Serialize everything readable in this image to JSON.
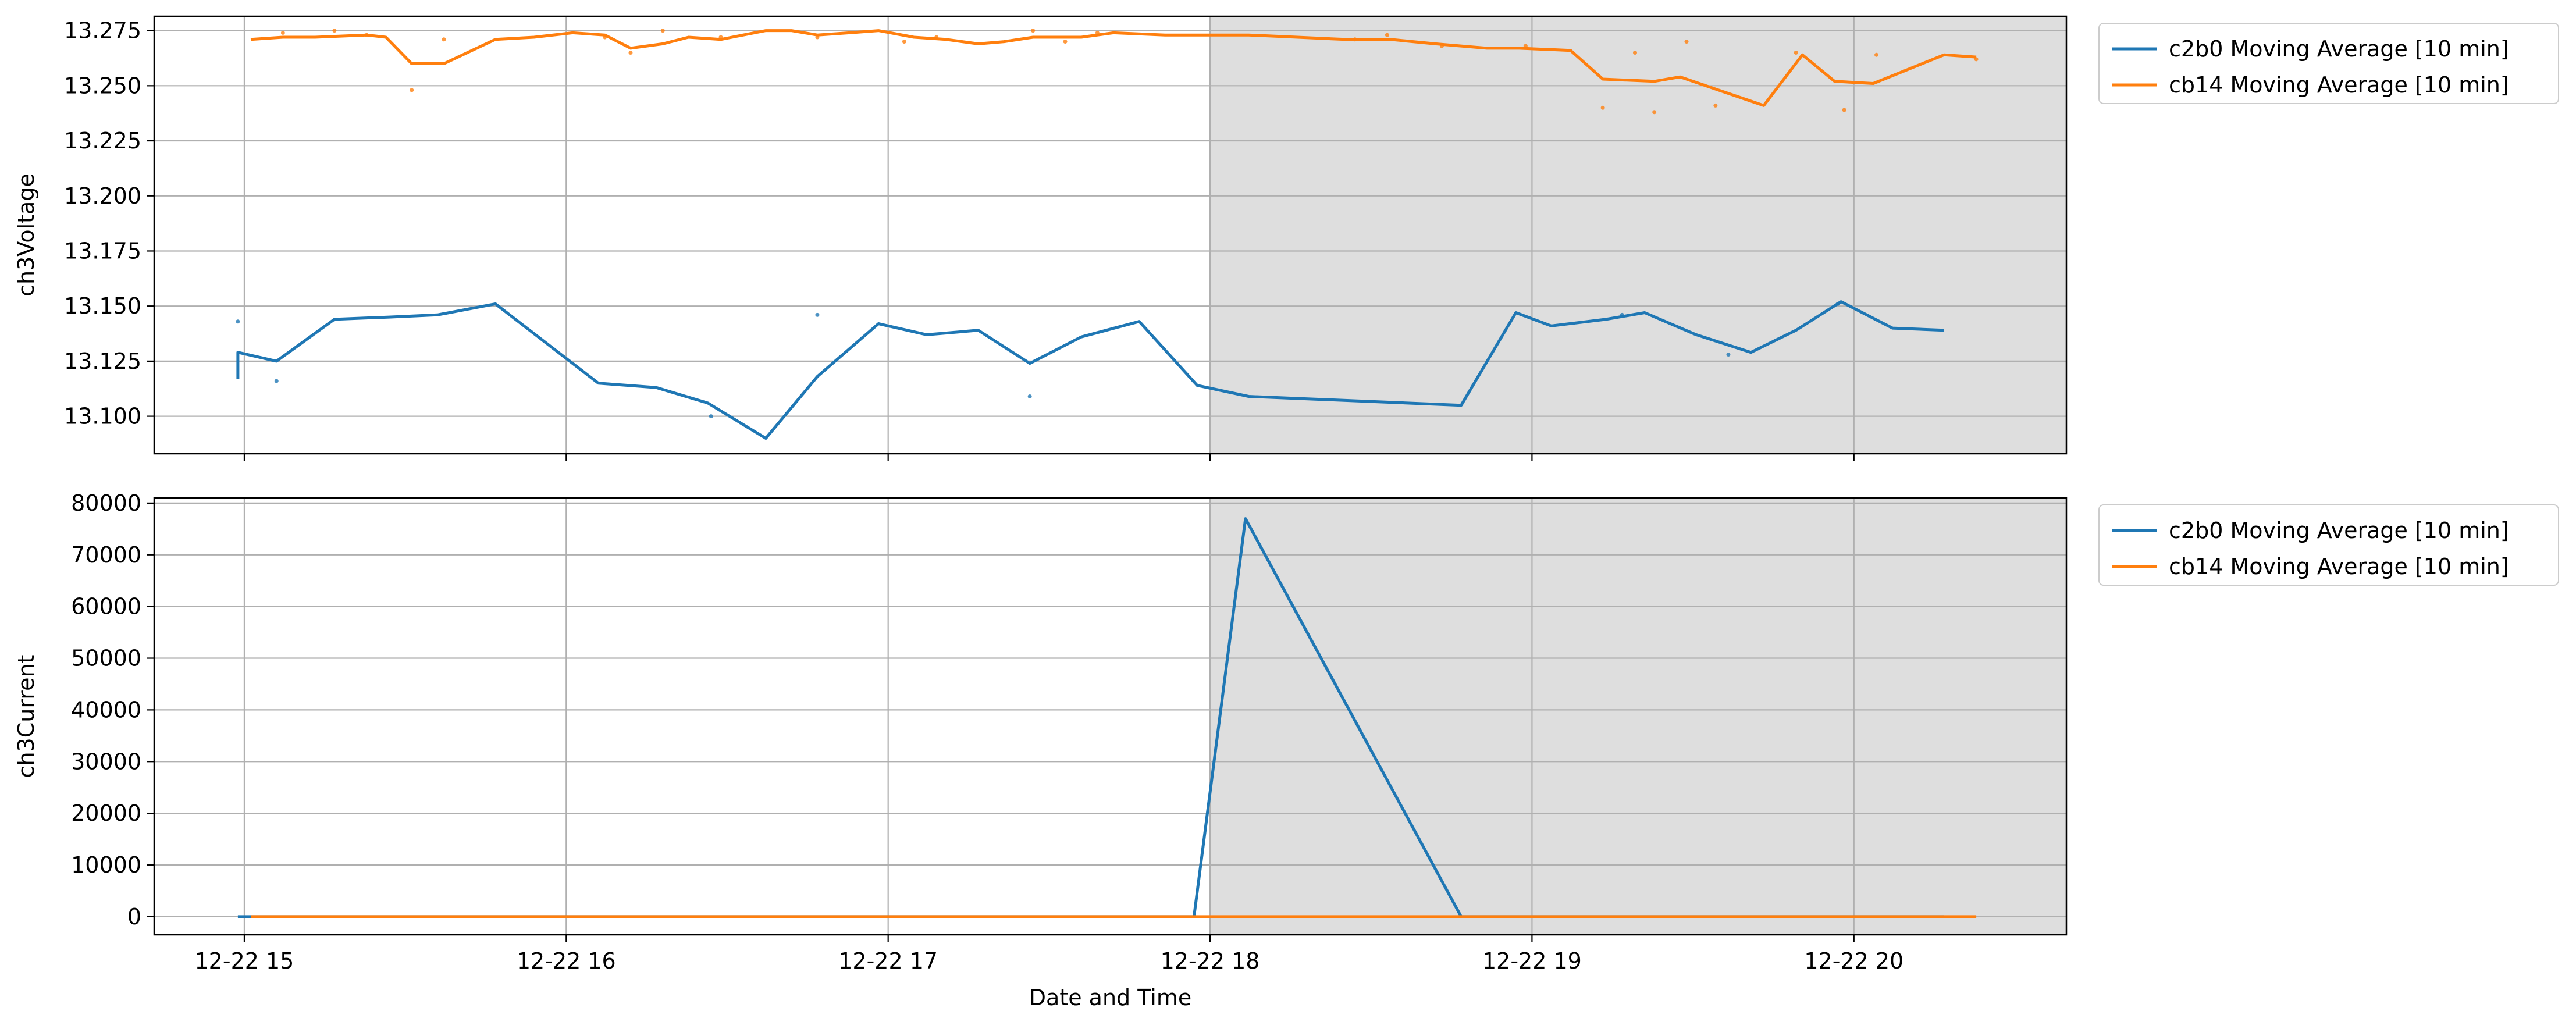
{
  "chart_data": [
    {
      "type": "line",
      "ylabel": "ch3Voltage",
      "xlabel": "",
      "xlim": [
        14.72,
        20.66
      ],
      "ylim": [
        13.083,
        13.2815
      ],
      "yticks": [
        13.1,
        13.125,
        13.15,
        13.175,
        13.2,
        13.225,
        13.25,
        13.275
      ],
      "ytick_labels": [
        "13.100",
        "13.125",
        "13.150",
        "13.175",
        "13.200",
        "13.225",
        "13.250",
        "13.275"
      ],
      "shaded_x_range": [
        18.0,
        20.66
      ],
      "grid": true,
      "legend_position": "outside-top-right",
      "series": [
        {
          "name": "c2b0 Moving Average [10 min]",
          "color": "#1f77b4",
          "x": [
            14.98,
            14.98,
            15.1,
            15.28,
            15.45,
            15.6,
            15.78,
            16.1,
            16.28,
            16.44,
            16.62,
            16.78,
            16.97,
            17.12,
            17.28,
            17.44,
            17.6,
            17.78,
            17.96,
            18.12,
            18.78,
            18.95,
            19.06,
            19.23,
            19.35,
            19.51,
            19.68,
            19.82,
            19.96,
            20.12,
            20.28
          ],
          "y": [
            13.117,
            13.129,
            13.125,
            13.144,
            13.145,
            13.146,
            13.151,
            13.115,
            13.113,
            13.106,
            13.09,
            13.118,
            13.142,
            13.137,
            13.139,
            13.124,
            13.136,
            13.143,
            13.114,
            13.109,
            13.105,
            13.147,
            13.141,
            13.144,
            13.147,
            13.137,
            13.129,
            13.139,
            13.152,
            13.14,
            13.139
          ]
        },
        {
          "name": "cb14 Moving Average [10 min]",
          "color": "#ff7f0e",
          "x": [
            15.02,
            15.12,
            15.22,
            15.38,
            15.44,
            15.52,
            15.62,
            15.78,
            15.9,
            16.02,
            16.12,
            16.2,
            16.3,
            16.38,
            16.48,
            16.62,
            16.7,
            16.78,
            16.88,
            16.97,
            17.08,
            17.18,
            17.28,
            17.36,
            17.45,
            17.6,
            17.7,
            17.86,
            17.98,
            18.12,
            18.42,
            18.56,
            18.7,
            18.86,
            18.96,
            19.12,
            19.22,
            19.38,
            19.46,
            19.6,
            19.72,
            19.84,
            19.94,
            20.06,
            20.28,
            20.38
          ],
          "y": [
            13.271,
            13.272,
            13.272,
            13.273,
            13.272,
            13.26,
            13.26,
            13.271,
            13.272,
            13.274,
            13.273,
            13.267,
            13.269,
            13.272,
            13.271,
            13.275,
            13.275,
            13.273,
            13.274,
            13.275,
            13.272,
            13.271,
            13.269,
            13.27,
            13.272,
            13.272,
            13.274,
            13.273,
            13.273,
            13.273,
            13.271,
            13.271,
            13.269,
            13.267,
            13.267,
            13.266,
            13.253,
            13.252,
            13.254,
            13.247,
            13.241,
            13.264,
            13.252,
            13.251,
            13.264,
            13.263
          ]
        }
      ],
      "scatter_points": [
        {
          "name": "c2b0",
          "color": "#1f77b4",
          "x": [
            14.98,
            15.1,
            16.45,
            16.78,
            17.44,
            19.28,
            19.61,
            19.95
          ],
          "y": [
            13.143,
            13.116,
            13.1,
            13.146,
            13.109,
            13.146,
            13.128,
            13.151
          ]
        },
        {
          "name": "cb14",
          "color": "#ff7f0e",
          "x": [
            15.12,
            15.28,
            15.38,
            15.52,
            15.62,
            16.12,
            16.2,
            16.3,
            16.48,
            16.78,
            17.05,
            17.15,
            17.45,
            17.55,
            17.65,
            18.45,
            18.55,
            18.72,
            18.98,
            19.22,
            19.32,
            19.38,
            19.48,
            19.57,
            19.82,
            19.97,
            20.07,
            20.38
          ],
          "y": [
            13.274,
            13.275,
            13.273,
            13.248,
            13.271,
            13.272,
            13.265,
            13.275,
            13.272,
            13.272,
            13.27,
            13.272,
            13.275,
            13.27,
            13.274,
            13.271,
            13.273,
            13.268,
            13.268,
            13.24,
            13.265,
            13.238,
            13.27,
            13.241,
            13.265,
            13.239,
            13.264,
            13.262
          ]
        }
      ],
      "legend": [
        "c2b0 Moving Average [10 min]",
        "cb14 Moving Average [10 min]"
      ]
    },
    {
      "type": "line",
      "ylabel": "ch3Current",
      "xlabel": "Date and Time",
      "xlim": [
        14.72,
        20.66
      ],
      "ylim": [
        -3500,
        81000
      ],
      "yticks": [
        0,
        10000,
        20000,
        30000,
        40000,
        50000,
        60000,
        70000,
        80000
      ],
      "ytick_labels": [
        "0",
        "10000",
        "20000",
        "30000",
        "40000",
        "50000",
        "60000",
        "70000",
        "80000"
      ],
      "xticks": [
        15,
        16,
        17,
        18,
        19,
        20
      ],
      "xtick_labels": [
        "12-22 15",
        "12-22 16",
        "12-22 17",
        "12-22 18",
        "12-22 19",
        "12-22 20"
      ],
      "shaded_x_range": [
        18.0,
        20.66
      ],
      "grid": true,
      "legend_position": "outside-top-right",
      "series": [
        {
          "name": "c2b0 Moving Average [10 min]",
          "color": "#1f77b4",
          "x": [
            14.98,
            15.05,
            17.95,
            18.11,
            18.78,
            20.28
          ],
          "y": [
            0,
            0,
            0,
            77000,
            0,
            0
          ]
        },
        {
          "name": "cb14 Moving Average [10 min]",
          "color": "#ff7f0e",
          "x": [
            15.02,
            20.38
          ],
          "y": [
            0,
            0
          ]
        }
      ],
      "legend": [
        "c2b0 Moving Average [10 min]",
        "cb14 Moving Average [10 min]"
      ]
    }
  ]
}
